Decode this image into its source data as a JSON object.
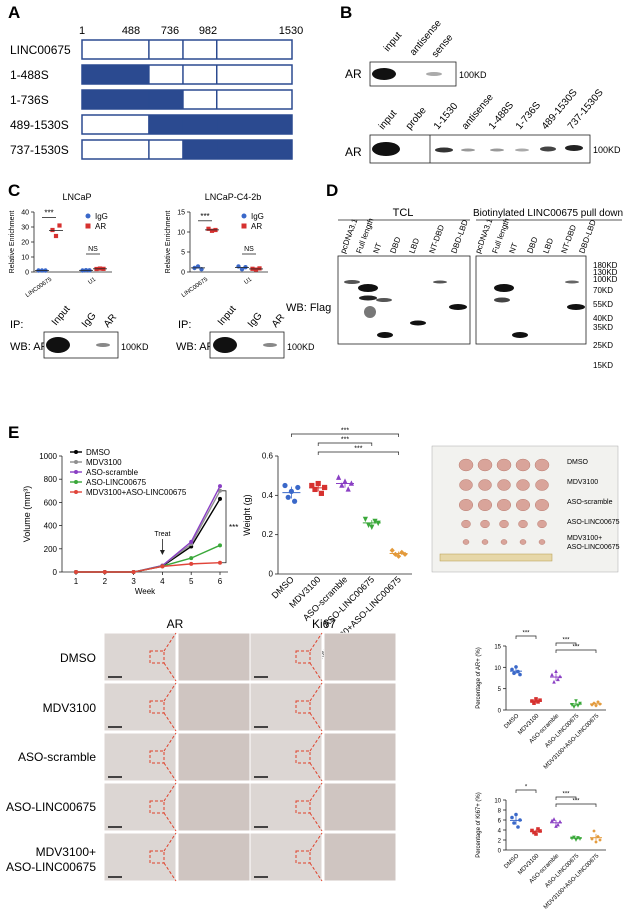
{
  "panels": {
    "A": {
      "letter": "A",
      "positions": [
        "1",
        "488",
        "736",
        "982",
        "1530"
      ],
      "constructs": [
        {
          "label": "LINC00675",
          "fill_start": null,
          "fill_end": null
        },
        {
          "label": "1-488S",
          "fill_start": 1,
          "fill_end": 488
        },
        {
          "label": "1-736S",
          "fill_start": 1,
          "fill_end": 736
        },
        {
          "label": "489-1530S",
          "fill_start": 489,
          "fill_end": 1530
        },
        {
          "label": "737-1530S",
          "fill_start": 737,
          "fill_end": 1530
        }
      ],
      "fill_color": "#2b4a90"
    },
    "B": {
      "letter": "B",
      "top_blot": {
        "lanes": [
          "input",
          "antisense",
          "sense"
        ],
        "row_label": "AR",
        "marker": "100KD"
      },
      "bottom_blot": {
        "lanes": [
          "input",
          "probe",
          "1-1530",
          "antisense",
          "1-488S",
          "1-736S",
          "489-1530S",
          "737-1530S"
        ],
        "row_label": "AR",
        "marker": "100KD"
      }
    },
    "C": {
      "letter": "C",
      "charts": [
        {
          "title": "LNCaP",
          "ylabel": "Relative Enrichment",
          "yticks": [
            "0",
            "10",
            "20",
            "30",
            "40"
          ],
          "categories": [
            "LINC00675",
            "U1"
          ],
          "legend": [
            "IgG",
            "AR"
          ],
          "sig": [
            "***",
            "NS"
          ]
        },
        {
          "title": "LNCaP-C4-2b",
          "ylabel": "Relative Enrichment",
          "yticks": [
            "0",
            "5",
            "10",
            "15"
          ],
          "categories": [
            "LINC00675",
            "U1"
          ],
          "legend": [
            "IgG",
            "AR"
          ],
          "sig": [
            "***",
            "NS"
          ]
        }
      ],
      "ip_label": "IP:",
      "wb_label": "WB: AR",
      "lanes": [
        "Input",
        "IgG",
        "AR"
      ],
      "marker": "100KD"
    },
    "D": {
      "letter": "D",
      "groups": [
        "TCL",
        "Biotinylated LINC00675 pull down"
      ],
      "lanes": [
        "pcDNA3.1",
        "Full length",
        "NT",
        "DBD",
        "LBD",
        "NT-DBD",
        "DBD-LBD"
      ],
      "markers": [
        "180KD",
        "130KD",
        "100KD",
        "70KD",
        "55KD",
        "40KD",
        "35KD",
        "25KD",
        "15KD"
      ],
      "wb_label": "WB: Flag"
    },
    "E": {
      "letter": "E",
      "photo_labels": [
        "DMSO",
        "MDV3100",
        "ASO-scramble",
        "ASO-LINC00675",
        "MDV3100+",
        "ASO-LINC00675"
      ],
      "ihc_columns": [
        "AR",
        "Ki67"
      ],
      "ihc_rows": [
        "DMSO",
        "MDV3100",
        "ASO-scramble",
        "ASO-LINC00675",
        "MDV3100+",
        "ASO-LINC00675"
      ]
    }
  },
  "chart_data": [
    {
      "type": "scatter",
      "title": "LNCaP",
      "ylabel": "Relative Enrichment",
      "categories": [
        "LINC00675",
        "U1"
      ],
      "ylim": [
        0,
        40
      ],
      "series": [
        {
          "name": "IgG",
          "color": "#3a68c9",
          "values": [
            [
              1.0,
              1.0,
              1.0
            ],
            [
              1.0,
              1.2,
              1.1
            ]
          ]
        },
        {
          "name": "AR",
          "color": "#d6312f",
          "values": [
            [
              28,
              24,
              31
            ],
            [
              2.0,
              2.3,
              2.1
            ]
          ]
        }
      ]
    },
    {
      "type": "scatter",
      "title": "LNCaP-C4-2b",
      "ylabel": "Relative Enrichment",
      "categories": [
        "LINC00675",
        "U1"
      ],
      "ylim": [
        0,
        15
      ],
      "series": [
        {
          "name": "IgG",
          "color": "#3a68c9",
          "values": [
            [
              1.0,
              1.4,
              0.7
            ],
            [
              1.4,
              0.7,
              1.2
            ]
          ]
        },
        {
          "name": "AR",
          "color": "#d6312f",
          "values": [
            [
              10.8,
              10.3,
              10.5
            ],
            [
              0.8,
              0.6,
              0.9
            ]
          ]
        }
      ]
    },
    {
      "type": "line",
      "ylabel": "Volume (mm³)",
      "xlabel": "Week",
      "x": [
        1,
        2,
        3,
        4,
        5,
        6
      ],
      "ylim": [
        0,
        1000
      ],
      "yticks": [
        0,
        200,
        400,
        600,
        800,
        1000
      ],
      "annotation": "Treat",
      "sig": "***",
      "series": [
        {
          "name": "DMSO",
          "color": "#000000",
          "values": [
            0,
            0,
            0,
            50,
            220,
            630
          ]
        },
        {
          "name": "MDV3100",
          "color": "#8f8f8f",
          "values": [
            0,
            0,
            0,
            55,
            240,
            700
          ]
        },
        {
          "name": "ASO-scramble",
          "color": "#8a3fc4",
          "values": [
            0,
            0,
            0,
            55,
            260,
            740
          ]
        },
        {
          "name": "ASO-LINC00675",
          "color": "#3aa83a",
          "values": [
            0,
            0,
            0,
            50,
            120,
            230
          ]
        },
        {
          "name": "MDV3100+ASO-LINC00675",
          "color": "#e0453a",
          "values": [
            0,
            0,
            0,
            48,
            70,
            80
          ]
        }
      ]
    },
    {
      "type": "scatter",
      "ylabel": "Weight (g)",
      "categories": [
        "DMSO",
        "MDV3100",
        "ASO-scramble",
        "ASO-LINC00675",
        "MDV3100+ASO-LINC00675"
      ],
      "ylim": [
        0,
        0.6
      ],
      "yticks": [
        0,
        0.2,
        0.4,
        0.6
      ],
      "sig": [
        "***",
        "***",
        "***"
      ],
      "series": [
        {
          "name": "DMSO",
          "color": "#3a68c9",
          "values": [
            0.45,
            0.39,
            0.42,
            0.37,
            0.44
          ]
        },
        {
          "name": "MDV3100",
          "color": "#d6312f",
          "values": [
            0.45,
            0.43,
            0.46,
            0.41,
            0.44
          ]
        },
        {
          "name": "ASO-scramble",
          "color": "#8a3fc4",
          "values": [
            0.49,
            0.45,
            0.47,
            0.43,
            0.46
          ]
        },
        {
          "name": "ASO-LINC00675",
          "color": "#3aa83a",
          "values": [
            0.28,
            0.25,
            0.24,
            0.27,
            0.26
          ]
        },
        {
          "name": "MDV3100+ASO-LINC00675",
          "color": "#e39a3b",
          "values": [
            0.12,
            0.1,
            0.09,
            0.11,
            0.1
          ]
        }
      ]
    },
    {
      "type": "scatter",
      "ylabel": "Percentage of AR+ (%)",
      "categories": [
        "DMSO",
        "MDV3100",
        "ASO-scramble",
        "ASO-LINC00675",
        "MDV3100+ASO-LINC00675"
      ],
      "ylim": [
        0,
        15
      ],
      "yticks": [
        0,
        5,
        10,
        15
      ],
      "sig": [
        "***",
        "***",
        "***"
      ],
      "series": [
        {
          "name": "DMSO",
          "color": "#3a68c9",
          "values": [
            9.5,
            8.6,
            10.1,
            9.0,
            8.3
          ]
        },
        {
          "name": "MDV3100",
          "color": "#d6312f",
          "values": [
            2.1,
            1.6,
            2.6,
            1.9,
            2.3
          ]
        },
        {
          "name": "ASO-scramble",
          "color": "#8a3fc4",
          "values": [
            8.2,
            6.5,
            9.0,
            7.1,
            7.8
          ]
        },
        {
          "name": "ASO-LINC00675",
          "color": "#3aa83a",
          "values": [
            1.3,
            0.8,
            2.2,
            1.1,
            1.6
          ]
        },
        {
          "name": "MDV3100+ASO-LINC00675",
          "color": "#e39a3b",
          "values": [
            1.2,
            1.6,
            1.0,
            1.9,
            1.4
          ]
        }
      ]
    },
    {
      "type": "scatter",
      "ylabel": "Percentage of Ki67+ (%)",
      "categories": [
        "DMSO",
        "MDV3100",
        "ASO-scramble",
        "ASO-LINC00675",
        "MDV3100+ASO-LINC00675"
      ],
      "ylim": [
        0,
        10
      ],
      "yticks": [
        0,
        2,
        4,
        6,
        8,
        10
      ],
      "sig": [
        "*",
        "***",
        "***"
      ],
      "series": [
        {
          "name": "DMSO",
          "color": "#3a68c9",
          "values": [
            6.5,
            5.4,
            7.1,
            4.6,
            6.0
          ]
        },
        {
          "name": "MDV3100",
          "color": "#d6312f",
          "values": [
            3.9,
            3.5,
            3.2,
            4.2,
            3.8
          ]
        },
        {
          "name": "ASO-scramble",
          "color": "#8a3fc4",
          "values": [
            5.8,
            6.1,
            4.7,
            5.0,
            5.6
          ]
        },
        {
          "name": "ASO-LINC00675",
          "color": "#3aa83a",
          "values": [
            2.4,
            2.6,
            2.1,
            2.5,
            2.3
          ]
        },
        {
          "name": "MDV3100+ASO-LINC00675",
          "color": "#e39a3b",
          "values": [
            2.2,
            3.8,
            1.6,
            2.7,
            2.0
          ]
        }
      ]
    }
  ]
}
